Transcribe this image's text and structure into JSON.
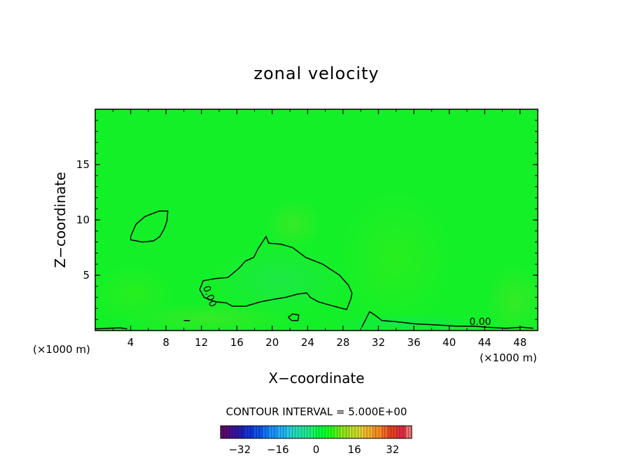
{
  "chart_data": {
    "type": "heatmap",
    "title": "zonal velocity",
    "xlabel": "X−coordinate",
    "ylabel": "Z−coordinate",
    "x_unit_left": "(×1000 m)",
    "x_unit_right": "(×1000 m)",
    "xlim": [
      0,
      50
    ],
    "ylim": [
      0,
      20
    ],
    "x_ticks": [
      4,
      8,
      12,
      16,
      20,
      24,
      28,
      32,
      36,
      40,
      44,
      48
    ],
    "x_tick_labels": [
      "4",
      "8",
      "12",
      "16",
      "20",
      "24",
      "28",
      "32",
      "36",
      "40",
      "44",
      "48"
    ],
    "y_ticks": [
      5,
      10,
      15
    ],
    "y_tick_labels": [
      "5",
      "10",
      "15"
    ],
    "contour_interval_text": "CONTOUR INTERVAL = 5.000E+00",
    "contour_labels": [
      {
        "text": "0.00",
        "x": 12.6,
        "y": 3.0,
        "angle": 70
      },
      {
        "text": "0.00",
        "x": 43.5,
        "y": 0.5,
        "angle": 0
      }
    ],
    "zero_contours": [
      {
        "name": "upper-loop",
        "points": [
          [
            4,
            8.5
          ],
          [
            4.6,
            9.6
          ],
          [
            5.6,
            10.3
          ],
          [
            7.2,
            10.8
          ],
          [
            8.2,
            10.8
          ],
          [
            8.1,
            9.9
          ],
          [
            7.8,
            9.2
          ],
          [
            7.3,
            8.5
          ],
          [
            6.6,
            8.1
          ],
          [
            5.3,
            8.0
          ],
          [
            4,
            8.2
          ],
          [
            4,
            8.5
          ]
        ]
      },
      {
        "name": "central-region",
        "points": [
          [
            11.8,
            3.7
          ],
          [
            12.2,
            4.5
          ],
          [
            13.6,
            4.7
          ],
          [
            15,
            4.8
          ],
          [
            16.2,
            5.6
          ],
          [
            17,
            6.3
          ],
          [
            17.9,
            6.6
          ],
          [
            18.4,
            7.4
          ],
          [
            19.3,
            8.5
          ],
          [
            19.6,
            7.9
          ],
          [
            21,
            7.8
          ],
          [
            22.3,
            7.5
          ],
          [
            23.8,
            6.6
          ],
          [
            25.7,
            6.0
          ],
          [
            27.6,
            5.0
          ],
          [
            28.6,
            4.1
          ],
          [
            29,
            3.4
          ],
          [
            28.9,
            2.9
          ],
          [
            28.4,
            1.9
          ],
          [
            27.9,
            2.0
          ],
          [
            26.5,
            2.3
          ],
          [
            25.2,
            2.6
          ],
          [
            24.3,
            3.0
          ],
          [
            23.9,
            3.4
          ],
          [
            22.9,
            3.3
          ],
          [
            21.5,
            3.0
          ],
          [
            20,
            2.8
          ],
          [
            18.7,
            2.6
          ],
          [
            17,
            2.2
          ],
          [
            15.5,
            2.2
          ],
          [
            14.8,
            2.5
          ],
          [
            13.6,
            2.6
          ],
          [
            12.3,
            3.0
          ],
          [
            11.8,
            3.7
          ]
        ]
      },
      {
        "name": "lower-right",
        "points": [
          [
            30.1,
            0.3
          ],
          [
            30.5,
            0.9
          ],
          [
            31,
            1.7
          ],
          [
            31.6,
            1.4
          ],
          [
            32.4,
            0.9
          ],
          [
            34,
            0.8
          ],
          [
            36.2,
            0.6
          ],
          [
            38.8,
            0.5
          ],
          [
            40.8,
            0.4
          ],
          [
            42.8,
            0.4
          ],
          [
            44.2,
            0.3
          ],
          [
            46.4,
            0.2
          ],
          [
            48.2,
            0.3
          ],
          [
            49.5,
            0.2
          ]
        ]
      },
      {
        "name": "small-loop",
        "points": [
          [
            21.8,
            1.2
          ],
          [
            22.3,
            1.5
          ],
          [
            23,
            1.4
          ],
          [
            22.9,
            0.9
          ],
          [
            22.2,
            0.9
          ],
          [
            21.8,
            1.2
          ]
        ]
      },
      {
        "name": "tiny-mark",
        "points": [
          [
            10,
            0.9
          ],
          [
            10.7,
            0.9
          ]
        ]
      },
      {
        "name": "bottom-left",
        "points": [
          [
            0,
            0.15
          ],
          [
            1.5,
            0.2
          ],
          [
            2.8,
            0.25
          ],
          [
            3.6,
            0.15
          ]
        ]
      }
    ],
    "colorbar": {
      "ticks": [
        -32,
        -16,
        0,
        16,
        32
      ],
      "tick_labels": [
        "−32",
        "−16",
        "0",
        "16",
        "32"
      ],
      "range": [
        -40,
        40
      ],
      "interval": 5,
      "colors": [
        "#5a0a6e",
        "#3a1296",
        "#1f1eb4",
        "#1434d2",
        "#1050e6",
        "#1470f0",
        "#1c90f4",
        "#20b0f0",
        "#24ccdc",
        "#24dcb4",
        "#20e890",
        "#18f468",
        "#00ff3c",
        "#20ff20",
        "#5cf018",
        "#90e41c",
        "#c0dc28",
        "#e0d030",
        "#f0b02c",
        "#f48c28",
        "#f06424",
        "#e44020",
        "#dc2c40",
        "#e87070"
      ]
    },
    "field_base_color": "#14f028"
  }
}
